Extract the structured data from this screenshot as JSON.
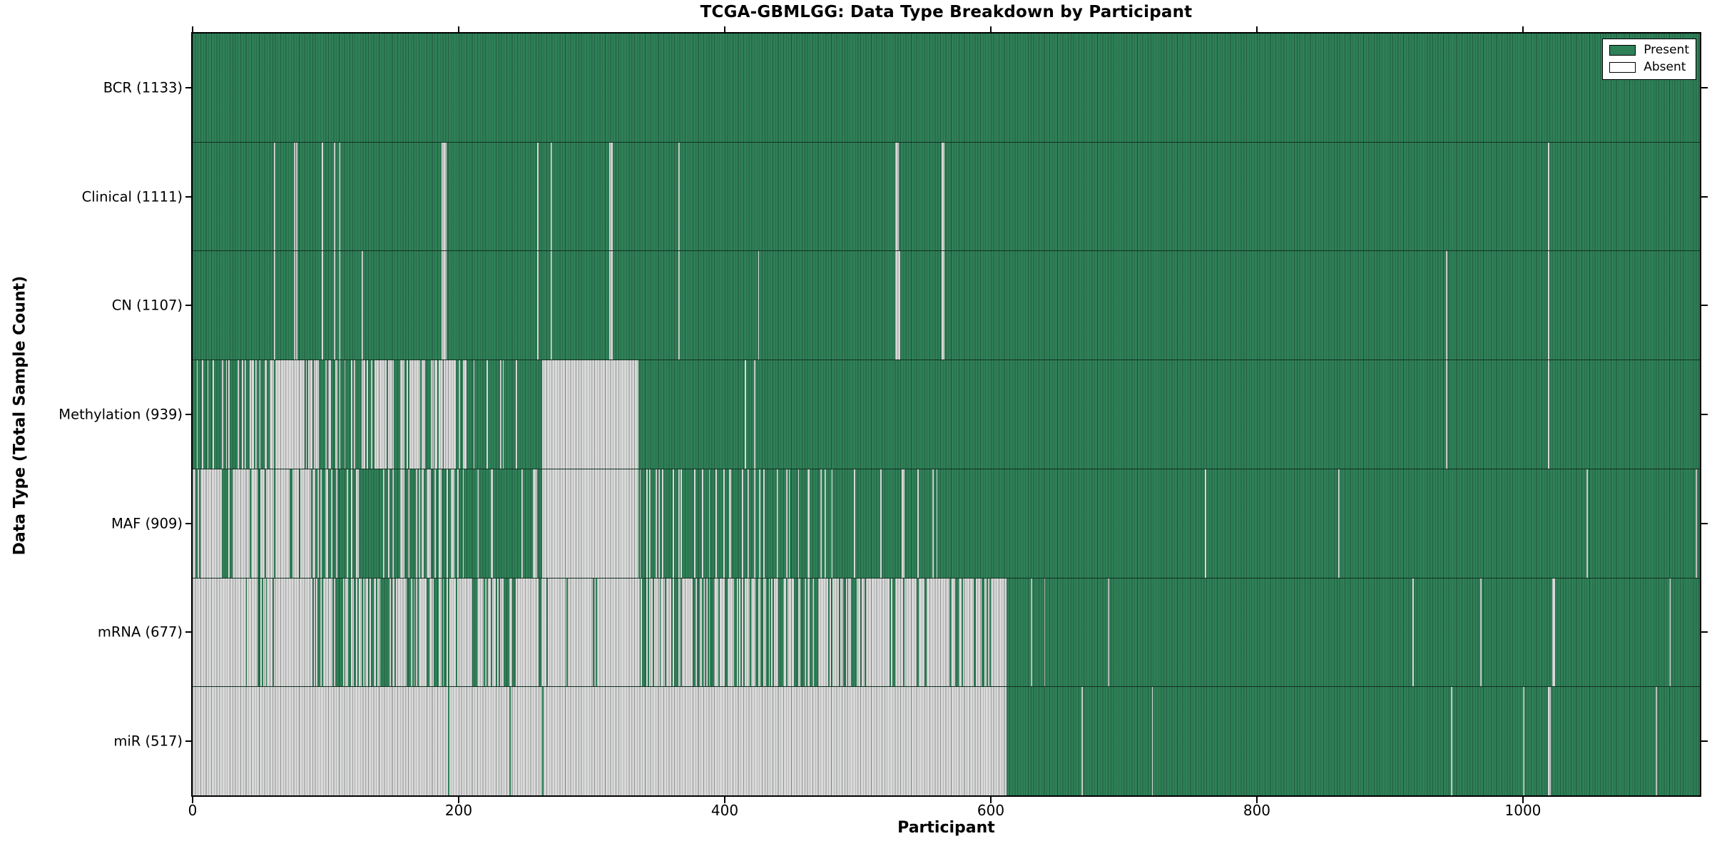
{
  "chart_data": {
    "type": "heatmap",
    "title": "TCGA-GBMLGG: Data Type Breakdown by Participant",
    "xlabel": "Participant",
    "ylabel": "Data Type (Total Sample Count)",
    "x_max": 1133,
    "x_ticks": [
      "0",
      "200",
      "400",
      "600",
      "800",
      "1000"
    ],
    "x_tick_values": [
      0,
      200,
      400,
      600,
      800,
      1000
    ],
    "grid": false,
    "legend_position": "upper right",
    "legend": {
      "present_label": "Present",
      "absent_label": "Absent"
    },
    "colors": {
      "present_green": "#2e8057",
      "absent_bar_gray": "#d9d9d9",
      "legend_absent_white": "#ffffff",
      "edge_line": "#14201a"
    },
    "rows": [
      {
        "name": "BCR",
        "label": "BCR (1133)",
        "present_count": 1133,
        "absent_solid": [],
        "absent_mixed": [],
        "absent_singles": [],
        "present_singles": []
      },
      {
        "name": "Clinical",
        "label": "Clinical (1111)",
        "present_count": 1111,
        "absent_solid": [],
        "absent_mixed": [],
        "absent_singles": [
          61,
          76,
          78,
          97,
          106,
          110,
          187,
          188,
          189,
          190,
          259,
          269,
          313,
          314,
          315,
          365,
          528,
          529,
          530,
          563,
          564,
          1019
        ],
        "present_singles": []
      },
      {
        "name": "CN",
        "label": "CN (1107)",
        "present_count": 1107,
        "absent_solid": [],
        "absent_mixed": [],
        "absent_singles": [
          61,
          76,
          78,
          97,
          106,
          110,
          127,
          187,
          188,
          189,
          190,
          259,
          269,
          313,
          314,
          315,
          365,
          425,
          528,
          529,
          530,
          531,
          563,
          564,
          942,
          1019
        ],
        "present_singles": []
      },
      {
        "name": "Methylation",
        "label": "Methylation (939)",
        "present_count": 939,
        "absent_solid": [
          [
            263,
            335
          ]
        ],
        "absent_mixed": [
          [
            0,
            58,
            0.3
          ],
          [
            58,
            85,
            0.92
          ],
          [
            85,
            140,
            0.45
          ],
          [
            140,
            205,
            0.68
          ],
          [
            205,
            263,
            0.1
          ]
        ],
        "absent_singles": [
          415,
          422,
          942,
          1019
        ],
        "present_singles": []
      },
      {
        "name": "MAF",
        "label": "MAF (909)",
        "present_count": 909,
        "absent_solid": [
          [
            263,
            335
          ]
        ],
        "absent_mixed": [
          [
            0,
            20,
            0.85
          ],
          [
            20,
            35,
            0.55
          ],
          [
            35,
            92,
            0.85
          ],
          [
            92,
            140,
            0.2
          ],
          [
            140,
            205,
            0.35
          ],
          [
            205,
            263,
            0.12
          ],
          [
            335,
            430,
            0.22
          ],
          [
            430,
            480,
            0.15
          ],
          [
            480,
            560,
            0.1
          ]
        ],
        "absent_singles": [
          761,
          861,
          1048,
          1130
        ],
        "present_singles": []
      },
      {
        "name": "mRNA",
        "label": "mRNA (677)",
        "present_count": 677,
        "absent_solid": [
          [
            0,
            33
          ]
        ],
        "absent_mixed": [
          [
            33,
            50,
            0.9
          ],
          [
            50,
            62,
            0.7
          ],
          [
            62,
            92,
            0.95
          ],
          [
            92,
            200,
            0.55
          ],
          [
            200,
            250,
            0.68
          ],
          [
            250,
            335,
            0.93
          ],
          [
            335,
            420,
            0.62
          ],
          [
            420,
            470,
            0.5
          ],
          [
            470,
            560,
            0.78
          ],
          [
            560,
            612,
            0.78
          ]
        ],
        "absent_singles": [
          630,
          640,
          688,
          917,
          968,
          1022,
          1023,
          1110
        ],
        "present_singles": []
      },
      {
        "name": "miR",
        "label": "miR (517)",
        "present_count": 517,
        "absent_solid": [
          [
            0,
            612
          ]
        ],
        "absent_mixed": [],
        "absent_singles": [
          668,
          721,
          946,
          1000,
          1019,
          1020,
          1100
        ],
        "present_singles": [
          192,
          238,
          263
        ]
      }
    ]
  }
}
